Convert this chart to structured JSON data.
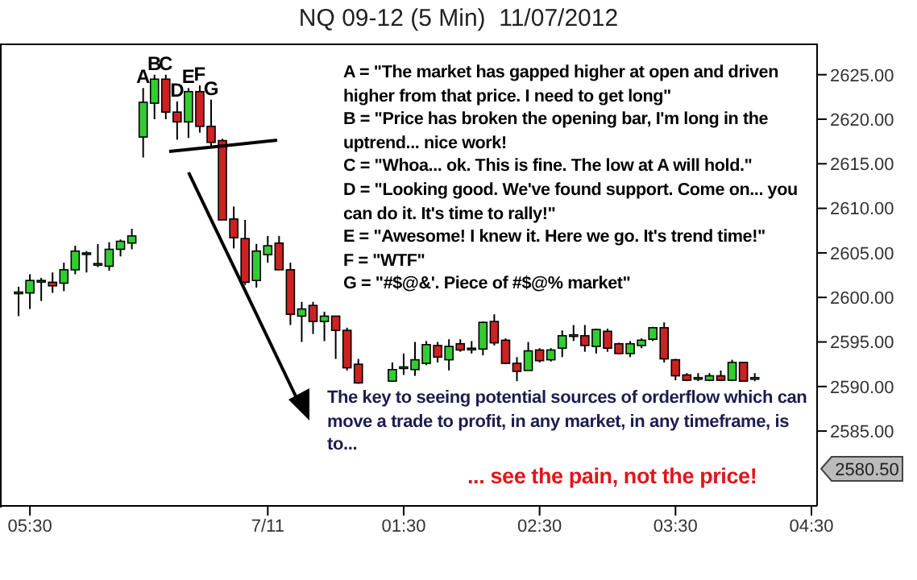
{
  "chart_data": {
    "type": "candlestick",
    "title": "NQ 09-12 (5 Min)  11/07/2012",
    "categories": [
      null,
      "05:30",
      null,
      null,
      null,
      null,
      null,
      null,
      null,
      null,
      null,
      null,
      null,
      null,
      null,
      null,
      null,
      null,
      null,
      null,
      null,
      null,
      "7/11",
      null,
      null,
      null,
      null,
      null,
      null,
      null,
      null,
      null,
      null,
      null,
      "01:30",
      null,
      null,
      null,
      null,
      null,
      null,
      null,
      null,
      null,
      null,
      null,
      "02:30",
      null,
      null,
      null,
      null,
      null,
      null,
      null,
      null,
      null,
      null,
      null,
      "03:30",
      null,
      null,
      null,
      null,
      null,
      null,
      null,
      null,
      null,
      null,
      null,
      "04:30"
    ],
    "ohlc": [
      [
        2600.5,
        2601.2,
        2597.9,
        2600.6
      ],
      [
        2600.5,
        2602.6,
        2598.7,
        2601.9
      ],
      [
        2601.8,
        2602.2,
        2599.6,
        2601.9
      ],
      [
        2601.7,
        2602.8,
        2600.5,
        2601.3
      ],
      [
        2601.6,
        2603.9,
        2600.7,
        2603.1
      ],
      [
        2603.1,
        2605.8,
        2602.6,
        2605.2
      ],
      [
        2604.9,
        2605.2,
        2602.8,
        2605.0
      ],
      [
        2603.7,
        2606.0,
        2603.4,
        2603.8
      ],
      [
        2603.5,
        2606.2,
        2603.0,
        2605.4
      ],
      [
        2605.4,
        2606.5,
        2604.6,
        2606.3
      ],
      [
        2606.1,
        2607.7,
        2605.4,
        2606.9
      ],
      [
        2618.0,
        2623.5,
        2615.7,
        2621.9
      ],
      [
        2621.8,
        2625.0,
        2620.0,
        2624.5
      ],
      [
        2624.5,
        2625.0,
        2620.0,
        2620.8
      ],
      [
        2620.8,
        2622.0,
        2617.7,
        2619.7
      ],
      [
        2619.7,
        2623.5,
        2617.9,
        2623.1
      ],
      [
        2623.1,
        2623.8,
        2618.5,
        2619.2
      ],
      [
        2619.2,
        2622.2,
        2617.0,
        2617.4
      ],
      [
        2617.6,
        2617.8,
        2608.7,
        2608.7
      ],
      [
        2608.8,
        2610.2,
        2605.5,
        2606.7
      ],
      [
        2606.6,
        2608.7,
        2601.4,
        2601.7
      ],
      [
        2601.9,
        2606.0,
        2601.1,
        2605.2
      ],
      [
        2604.8,
        2606.9,
        2603.9,
        2605.8
      ],
      [
        2606.1,
        2606.9,
        2603.1,
        2603.1
      ],
      [
        2603.1,
        2603.9,
        2596.9,
        2598.1
      ],
      [
        2597.9,
        2599.5,
        2595.0,
        2598.7
      ],
      [
        2599.1,
        2599.5,
        2595.9,
        2597.3
      ],
      [
        2597.3,
        2598.4,
        2595.1,
        2597.9
      ],
      [
        2597.9,
        2597.9,
        2593.1,
        2596.3
      ],
      [
        2596.3,
        2596.6,
        2591.8,
        2592.1
      ],
      [
        2592.5,
        2593.1,
        2590.3,
        2590.4
      ],
      null,
      null,
      [
        2590.6,
        2592.7,
        2590.6,
        2591.9
      ],
      [
        2592.1,
        2593.7,
        2591.3,
        2592.2
      ],
      [
        2591.9,
        2595.0,
        2591.2,
        2593.0
      ],
      [
        2592.6,
        2595.1,
        2592.4,
        2594.7
      ],
      [
        2594.6,
        2595.0,
        2592.7,
        2593.3
      ],
      [
        2593.0,
        2595.3,
        2591.8,
        2594.5
      ],
      [
        2594.8,
        2595.3,
        2593.9,
        2594.1
      ],
      [
        2594.2,
        2595.1,
        2593.7,
        2594.3
      ],
      [
        2594.2,
        2597.3,
        2593.5,
        2597.2
      ],
      [
        2597.3,
        2598.1,
        2594.6,
        2594.9
      ],
      [
        2595.2,
        2595.4,
        2592.5,
        2592.6
      ],
      [
        2592.6,
        2593.3,
        2590.6,
        2591.7
      ],
      [
        2591.8,
        2595.0,
        2591.8,
        2594.0
      ],
      [
        2594.1,
        2594.3,
        2592.7,
        2592.9
      ],
      [
        2593.0,
        2594.3,
        2592.8,
        2594.1
      ],
      [
        2594.3,
        2596.3,
        2593.3,
        2595.7
      ],
      [
        2595.7,
        2596.9,
        2595.1,
        2595.8
      ],
      [
        2595.7,
        2596.9,
        2593.9,
        2594.6
      ],
      [
        2594.5,
        2596.5,
        2593.7,
        2596.4
      ],
      [
        2596.2,
        2596.5,
        2593.9,
        2594.3
      ],
      [
        2594.8,
        2594.9,
        2593.6,
        2593.7
      ],
      [
        2593.7,
        2595.1,
        2593.3,
        2594.8
      ],
      [
        2594.6,
        2595.4,
        2594.3,
        2595.2
      ],
      [
        2595.3,
        2596.7,
        2595.1,
        2596.6
      ],
      [
        2596.6,
        2597.2,
        2592.7,
        2593.1
      ],
      [
        2593.0,
        2593.1,
        2590.7,
        2591.2
      ],
      [
        2591.3,
        2591.5,
        2590.6,
        2590.7
      ],
      [
        2590.9,
        2591.5,
        2590.6,
        2591.0
      ],
      [
        2590.7,
        2591.5,
        2590.6,
        2591.2
      ],
      [
        2591.2,
        2591.8,
        2590.6,
        2590.7
      ],
      [
        2590.7,
        2593.0,
        2590.6,
        2592.7
      ],
      [
        2592.7,
        2592.7,
        2590.6,
        2590.6
      ],
      [
        2591.0,
        2591.5,
        2590.6,
        2591.0
      ],
      null,
      null,
      null,
      null,
      null
    ],
    "colors": [
      "#33cc33",
      "#33cc33",
      "#33cc33",
      "#cc2222",
      "#33cc33",
      "#33cc33",
      "#33cc33",
      "#33cc33",
      "#33cc33",
      "#33cc33",
      "#33cc33",
      "#33cc33",
      "#33cc33",
      "#cc2222",
      "#cc2222",
      "#33cc33",
      "#cc2222",
      "#cc2222",
      "#cc2222",
      "#cc2222",
      "#cc2222",
      "#33cc33",
      "#33cc33",
      "#cc2222",
      "#cc2222",
      "#33cc33",
      "#cc2222",
      "#33cc33",
      "#cc2222",
      "#cc2222",
      "#cc2222",
      null,
      null,
      "#33cc33",
      "#33cc33",
      "#33cc33",
      "#33cc33",
      "#cc2222",
      "#33cc33",
      "#cc2222",
      "#33cc33",
      "#33cc33",
      "#cc2222",
      "#cc2222",
      "#cc2222",
      "#33cc33",
      "#cc2222",
      "#33cc33",
      "#33cc33",
      "#33cc33",
      "#cc2222",
      "#33cc33",
      "#cc2222",
      "#cc2222",
      "#33cc33",
      "#33cc33",
      "#33cc33",
      "#cc2222",
      "#cc2222",
      "#cc2222",
      "#33cc33",
      "#33cc33",
      "#cc2222",
      "#33cc33",
      "#cc2222",
      "#33cc33",
      null,
      null,
      null,
      null,
      null
    ],
    "value_labels": [
      null,
      null,
      null,
      null,
      null,
      null,
      null,
      null,
      null,
      null,
      null,
      "A",
      "B",
      "C",
      "D",
      "E",
      "F",
      "G",
      null,
      null,
      null,
      null,
      null,
      null,
      null,
      null,
      null,
      null,
      null,
      null,
      null,
      null,
      null,
      null,
      null,
      null,
      null,
      null,
      null,
      null,
      null,
      null,
      null,
      null,
      null,
      null,
      null,
      null,
      null,
      null,
      null,
      null,
      null,
      null,
      null,
      null,
      null,
      null,
      null,
      null,
      null,
      null,
      null,
      null,
      null,
      null,
      null,
      null,
      null,
      null,
      null
    ],
    "ylim": [
      2576.6,
      2628.5
    ],
    "yticks": [
      {
        "value": 2585,
        "label": "2585.00"
      },
      {
        "value": 2590,
        "label": "2590.00"
      },
      {
        "value": 2595,
        "label": "2595.00"
      },
      {
        "value": 2600,
        "label": "2600.00"
      },
      {
        "value": 2605,
        "label": "2605.00"
      },
      {
        "value": 2610,
        "label": "2610.00"
      },
      {
        "value": 2615,
        "label": "2615.00"
      },
      {
        "value": 2620,
        "label": "2620.00"
      },
      {
        "value": 2625,
        "label": "2625.00"
      }
    ],
    "annotations": [
      "A = \"The market has gapped higher at open and driven higher from that price. I need to get long\"",
      "B = \"Price has broken the opening bar, I'm long in the uptrend... nice work!",
      "C = \"Whoa... ok. This is fine. The low at A will hold.\"",
      "D = \"Looking good. We've found support. Come on... you can do it. It's time to rally!\"",
      "E = \"Awesome! I knew it. Here we go. It's trend time!\"",
      "F = \"WTF\"",
      "G = \"#$@&'. Piece of #$@% market\"",
      "The key to seeing potential sources of orderflow which can move a trade to profit, in any market, in any timeframe, is to...",
      "... see the pain, not the price!",
      "2580.50"
    ]
  }
}
